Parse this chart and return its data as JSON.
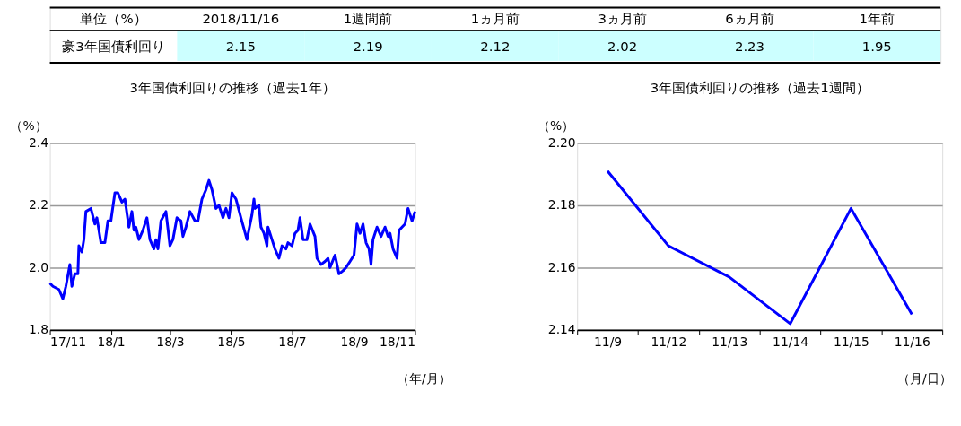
{
  "chart_data": [
    {
      "type": "other",
      "categories": [
        "2018/11/16",
        "1週間前",
        "1ヵ月前",
        "3ヵ月前",
        "6ヵ月前",
        "1年前"
      ],
      "values": [
        2.15,
        2.19,
        2.12,
        2.02,
        2.23,
        1.95
      ],
      "data_labels": true,
      "annotations": [
        "単位（%）",
        "豪3年国債利回り"
      ]
    },
    {
      "type": "line",
      "title": "3年国債利回りの推移（過去1年）",
      "ylabel": "（%）",
      "xlabel": "（年/月）",
      "grid": "y",
      "xlim": [
        "2017-11-16",
        "2018-11-16"
      ],
      "xticks": [
        {
          "value": "2017-11-16",
          "label": "17/11"
        },
        {
          "value": "2018-01-16",
          "label": "18/1"
        },
        {
          "value": "2018-03-16",
          "label": "18/3"
        },
        {
          "value": "2018-05-16",
          "label": "18/5"
        },
        {
          "value": "2018-07-16",
          "label": "18/7"
        },
        {
          "value": "2018-09-16",
          "label": "18/9"
        },
        {
          "value": "2018-11-16",
          "label": "18/11"
        }
      ],
      "ylim": [
        1.8,
        2.4
      ],
      "yticks": [
        1.8,
        {
          "value": 2.0,
          "label": "2.0"
        },
        2.2,
        2.4
      ],
      "x": [
        "2017-11-16",
        "2017-11-19",
        "2017-11-25",
        "2017-11-29",
        "2017-12-02",
        "2017-12-06",
        "2017-12-08",
        "2017-12-11",
        "2017-12-14",
        "2017-12-15",
        "2017-12-18",
        "2017-12-20",
        "2017-12-22",
        "2017-12-27",
        "2017-12-31",
        "2018-01-02",
        "2018-01-06",
        "2018-01-10",
        "2018-01-13",
        "2018-01-16",
        "2018-01-20",
        "2018-01-23",
        "2018-01-27",
        "2018-01-30",
        "2018-02-03",
        "2018-02-06",
        "2018-02-08",
        "2018-02-10",
        "2018-02-13",
        "2018-02-17",
        "2018-02-21",
        "2018-02-24",
        "2018-02-28",
        "2018-03-02",
        "2018-03-04",
        "2018-03-07",
        "2018-03-12",
        "2018-03-16",
        "2018-03-19",
        "2018-03-23",
        "2018-03-27",
        "2018-03-29",
        "2018-04-01",
        "2018-04-05",
        "2018-04-10",
        "2018-04-13",
        "2018-04-17",
        "2018-04-21",
        "2018-04-24",
        "2018-04-27",
        "2018-05-01",
        "2018-05-04",
        "2018-05-08",
        "2018-05-11",
        "2018-05-14",
        "2018-05-17",
        "2018-05-21",
        "2018-05-26",
        "2018-06-01",
        "2018-06-06",
        "2018-06-08",
        "2018-06-09",
        "2018-06-13",
        "2018-06-15",
        "2018-06-18",
        "2018-06-21",
        "2018-06-22",
        "2018-06-26",
        "2018-06-29",
        "2018-07-03",
        "2018-07-06",
        "2018-07-10",
        "2018-07-12",
        "2018-07-16",
        "2018-07-19",
        "2018-07-22",
        "2018-07-24",
        "2018-07-27",
        "2018-07-31",
        "2018-08-03",
        "2018-08-08",
        "2018-08-10",
        "2018-08-14",
        "2018-08-18",
        "2018-08-21",
        "2018-08-23",
        "2018-08-28",
        "2018-09-01",
        "2018-09-05",
        "2018-09-08",
        "2018-09-12",
        "2018-09-16",
        "2018-09-19",
        "2018-09-22",
        "2018-09-25",
        "2018-09-28",
        "2018-10-01",
        "2018-10-03",
        "2018-10-05",
        "2018-10-09",
        "2018-10-13",
        "2018-10-17",
        "2018-10-20",
        "2018-10-22",
        "2018-10-25",
        "2018-10-29",
        "2018-10-31",
        "2018-11-06",
        "2018-11-09",
        "2018-11-13",
        "2018-11-16"
      ],
      "series": [
        {
          "color": "#0000ff",
          "values": [
            1.95,
            1.94,
            1.93,
            1.9,
            1.94,
            2.01,
            1.94,
            1.98,
            1.98,
            2.07,
            2.05,
            2.09,
            2.18,
            2.19,
            2.14,
            2.16,
            2.08,
            2.08,
            2.15,
            2.15,
            2.24,
            2.24,
            2.21,
            2.22,
            2.13,
            2.18,
            2.12,
            2.13,
            2.09,
            2.12,
            2.16,
            2.09,
            2.06,
            2.09,
            2.06,
            2.15,
            2.18,
            2.07,
            2.09,
            2.16,
            2.15,
            2.1,
            2.13,
            2.18,
            2.15,
            2.15,
            2.22,
            2.25,
            2.28,
            2.25,
            2.19,
            2.2,
            2.16,
            2.19,
            2.16,
            2.24,
            2.22,
            2.16,
            2.09,
            2.17,
            2.22,
            2.19,
            2.2,
            2.13,
            2.11,
            2.07,
            2.13,
            2.09,
            2.06,
            2.03,
            2.07,
            2.06,
            2.08,
            2.07,
            2.11,
            2.12,
            2.16,
            2.09,
            2.09,
            2.14,
            2.1,
            2.03,
            2.01,
            2.02,
            2.03,
            2.0,
            2.04,
            1.98,
            1.99,
            2.0,
            2.02,
            2.04,
            2.14,
            2.11,
            2.14,
            2.08,
            2.06,
            2.01,
            2.09,
            2.13,
            2.1,
            2.13,
            2.1,
            2.11,
            2.06,
            2.03,
            2.12,
            2.14,
            2.19,
            2.15,
            2.18
          ]
        }
      ]
    },
    {
      "type": "line",
      "title": "3年国債利回りの推移（過去1週間）",
      "ylabel": "（%）",
      "xlabel": "（月/日）",
      "grid": "y",
      "categories": [
        "11/9",
        "11/12",
        "11/13",
        "11/14",
        "11/15",
        "11/16"
      ],
      "ylim": [
        2.14,
        2.2
      ],
      "yticks": [
        {
          "value": 2.14,
          "label": "2.14"
        },
        {
          "value": 2.16,
          "label": "2.16"
        },
        {
          "value": 2.18,
          "label": "2.18"
        },
        {
          "value": 2.2,
          "label": "2.20"
        }
      ],
      "series": [
        {
          "color": "#0000ff",
          "values": [
            2.191,
            2.167,
            2.157,
            2.142,
            2.179,
            2.145
          ]
        }
      ]
    }
  ]
}
